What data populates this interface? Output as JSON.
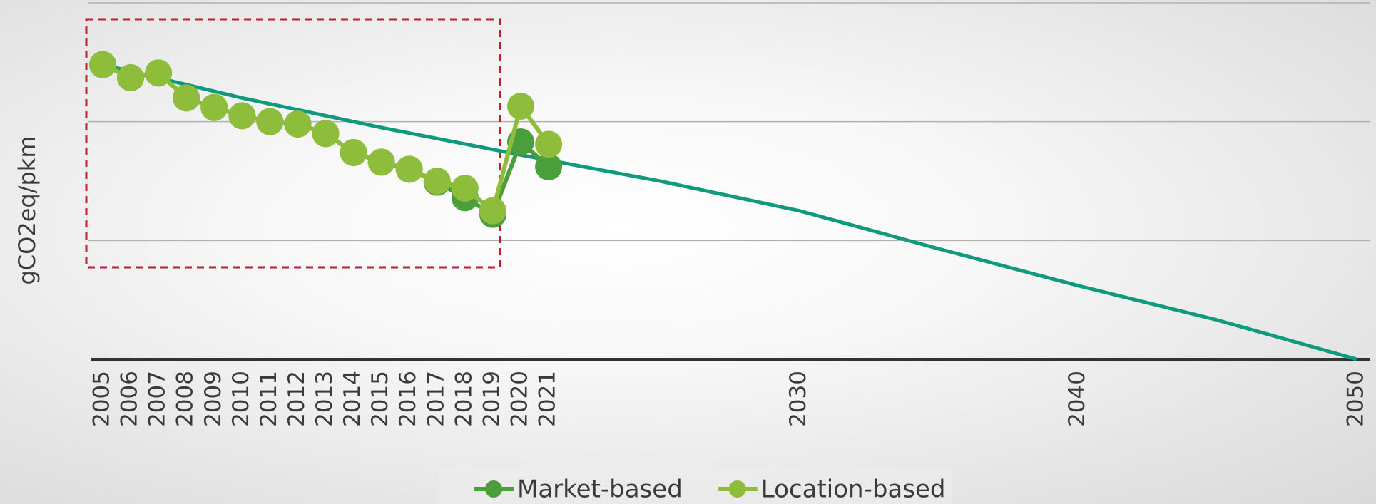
{
  "chart_data": {
    "type": "line",
    "y_label": "gCO2eq/pkm",
    "xlim": [
      2005,
      2050
    ],
    "xticks": [
      2005,
      2006,
      2007,
      2008,
      2009,
      2010,
      2011,
      2012,
      2013,
      2014,
      2015,
      2016,
      2017,
      2018,
      2019,
      2020,
      2021,
      2030,
      2040,
      2050
    ],
    "ylim": [
      0,
      3
    ],
    "yticks": [
      0,
      1,
      2,
      3
    ],
    "grid": true,
    "legend": "bottom",
    "series": [
      {
        "color": "#0f9a7e",
        "markers": false,
        "x": [
          2005,
          2010,
          2015,
          2020,
          2025,
          2030,
          2035,
          2040,
          2045,
          2050
        ],
        "values": [
          2.48,
          2.2,
          1.95,
          1.72,
          1.5,
          1.25,
          0.93,
          0.62,
          0.33,
          0
        ]
      },
      {
        "name": "Market-based",
        "color": "#4a9e3c",
        "markers": true,
        "x": [
          2005,
          2006,
          2007,
          2008,
          2009,
          2010,
          2011,
          2012,
          2013,
          2014,
          2015,
          2016,
          2017,
          2018,
          2019,
          2020,
          2021
        ],
        "values": [
          2.48,
          2.37,
          2.41,
          2.2,
          2.12,
          2.05,
          2.0,
          1.98,
          1.9,
          1.74,
          1.66,
          1.6,
          1.49,
          1.36,
          1.22,
          1.83,
          1.62
        ]
      },
      {
        "name": "Location-based",
        "color": "#8dbd3a",
        "markers": true,
        "x": [
          2005,
          2006,
          2007,
          2008,
          2009,
          2010,
          2011,
          2012,
          2013,
          2014,
          2015,
          2016,
          2017,
          2018,
          2019,
          2020,
          2021
        ],
        "values": [
          2.48,
          2.37,
          2.41,
          2.2,
          2.12,
          2.05,
          2.0,
          1.98,
          1.9,
          1.74,
          1.66,
          1.6,
          1.5,
          1.44,
          1.25,
          2.13,
          1.81
        ]
      }
    ]
  }
}
